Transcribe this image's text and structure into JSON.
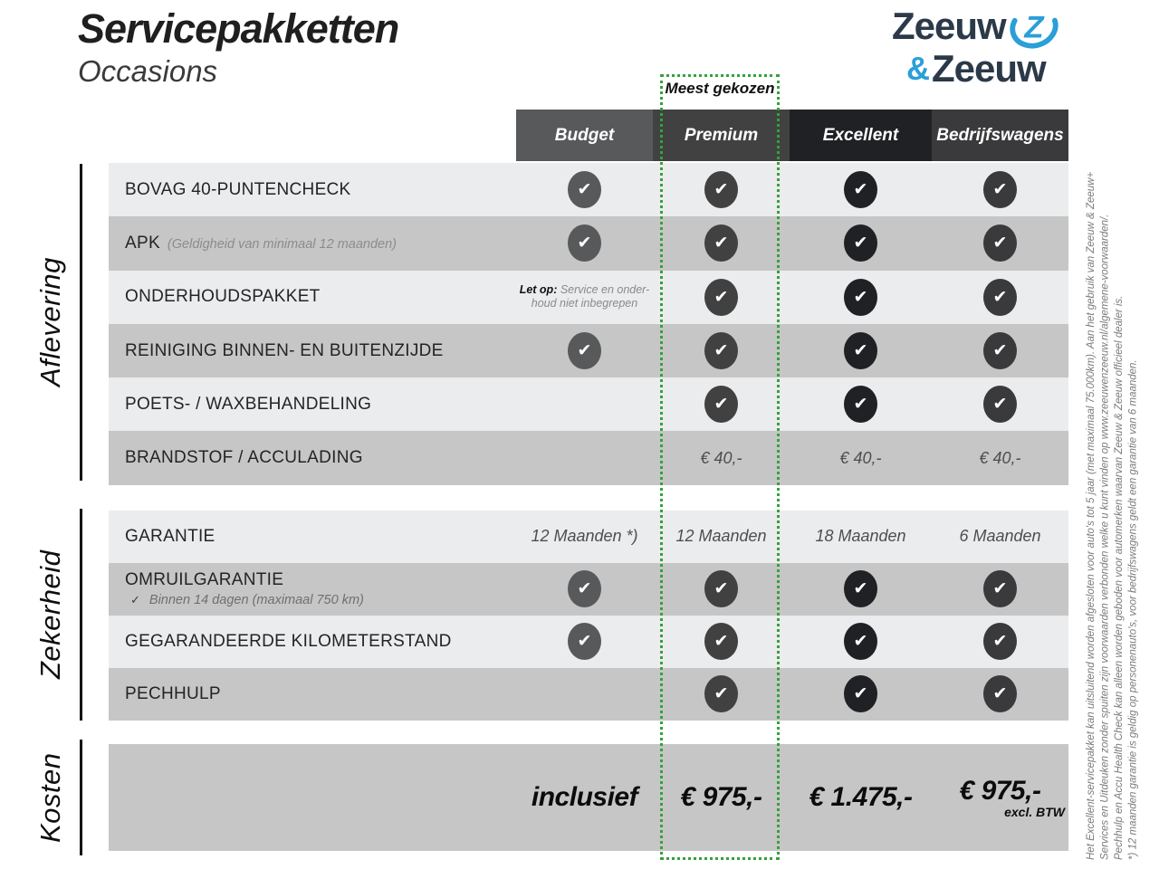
{
  "header": {
    "title": "Servicepakketten",
    "subtitle": "Occasions"
  },
  "logo": {
    "word1": "Zeeuw",
    "amp": "&",
    "word2": "Zeeuw",
    "navy": "#2b3948",
    "blue": "#2a9fd8"
  },
  "table": {
    "most_chosen": "Meest gekozen",
    "highlight_color": "#35a23a",
    "check_glyph": "✔",
    "subcheck_glyph": "✓",
    "columns": [
      {
        "label": "Budget",
        "color": "#58595b"
      },
      {
        "label": "Premium",
        "color": "#414142",
        "highlighted": true
      },
      {
        "label": "Excellent",
        "color": "#202124"
      },
      {
        "label": "Bedrijfswagens",
        "color": "#3a3a3c"
      }
    ],
    "sections": [
      {
        "name": "Aflevering",
        "gap_after": 28,
        "rows": [
          {
            "label": "BOVAG 40-PUNTENCHECK",
            "shade": "light",
            "cells": [
              "check",
              "check",
              "check",
              "check"
            ]
          },
          {
            "label": "APK",
            "sublabel": "(Geldigheid van minimaal 12 maanden)",
            "shade": "dark",
            "cells": [
              "check",
              "check",
              "check",
              "check"
            ]
          },
          {
            "label": "ONDERHOUDSPAKKET",
            "shade": "light",
            "cells": [
              {
                "note": {
                  "bold": "Let op:",
                  "line1": "Service en onder-",
                  "line2": "houd niet inbegrepen"
                }
              },
              "check",
              "check",
              "check"
            ]
          },
          {
            "label": "REINIGING BINNEN- EN BUITENZIJDE",
            "shade": "dark",
            "cells": [
              "check",
              "check",
              "check",
              "check"
            ]
          },
          {
            "label": "POETS- / WAXBEHANDELING",
            "shade": "light",
            "cells": [
              null,
              "check",
              "check",
              "check"
            ]
          },
          {
            "label": "BRANDSTOF / ACCULADING",
            "shade": "dark",
            "cells": [
              null,
              {
                "text": "€ 40,-"
              },
              {
                "text": "€ 40,-"
              },
              {
                "text": "€ 40,-"
              }
            ]
          }
        ]
      },
      {
        "name": "Zekerheid",
        "gap_after": 26,
        "rows": [
          {
            "label": "GARANTIE",
            "shade": "light",
            "zek": true,
            "cells": [
              {
                "text": "12 Maanden *)"
              },
              {
                "text": "12 Maanden"
              },
              {
                "text": "18 Maanden"
              },
              {
                "text": "6 Maanden"
              }
            ]
          },
          {
            "label": "OMRUILGARANTIE",
            "subcheck": "Binnen 14 dagen (maximaal 750 km)",
            "shade": "dark",
            "zek": true,
            "cells": [
              "check",
              "check",
              "check",
              "check"
            ]
          },
          {
            "label": "GEGARANDEERDE KILOMETERSTAND",
            "shade": "light",
            "zek": true,
            "cells": [
              "check",
              "check",
              "check",
              "check"
            ]
          },
          {
            "label": "PECHHULP",
            "shade": "dark",
            "zek": true,
            "cells": [
              null,
              "check",
              "check",
              "check"
            ]
          }
        ]
      },
      {
        "name": "Kosten",
        "rows": [
          {
            "label": "",
            "shade": "dark",
            "kosten": true,
            "cells": [
              {
                "price": "inclusief"
              },
              {
                "price": "€ 975,-"
              },
              {
                "price": "€ 1.475,-"
              },
              {
                "price": "€ 975,-",
                "price_sub": "excl. BTW"
              }
            ]
          }
        ]
      }
    ]
  },
  "footnotes": [
    "Het Excellent-servicepakket kan uitsluitend worden afgesloten voor auto's tot 5 jaar (met maximaal 75.000km). Aan het gebruik van Zeeuw & Zeeuw+",
    "Services en Uitdeuken zonder spuiten zijn voorwaarden verbonden welke u kunt vinden op www.zeeuwenzeeuw.nl/algemene-voorwaarden/.",
    "Pechhulp en Accu Health Check kan alleen worden geboden voor automerken waarvan Zeeuw & Zeeuw officieel dealer is.",
    "*) 12 maanden garantie is geldig op personenauto's, voor bedrijfswagens geldt een garantie van 6 maanden."
  ]
}
